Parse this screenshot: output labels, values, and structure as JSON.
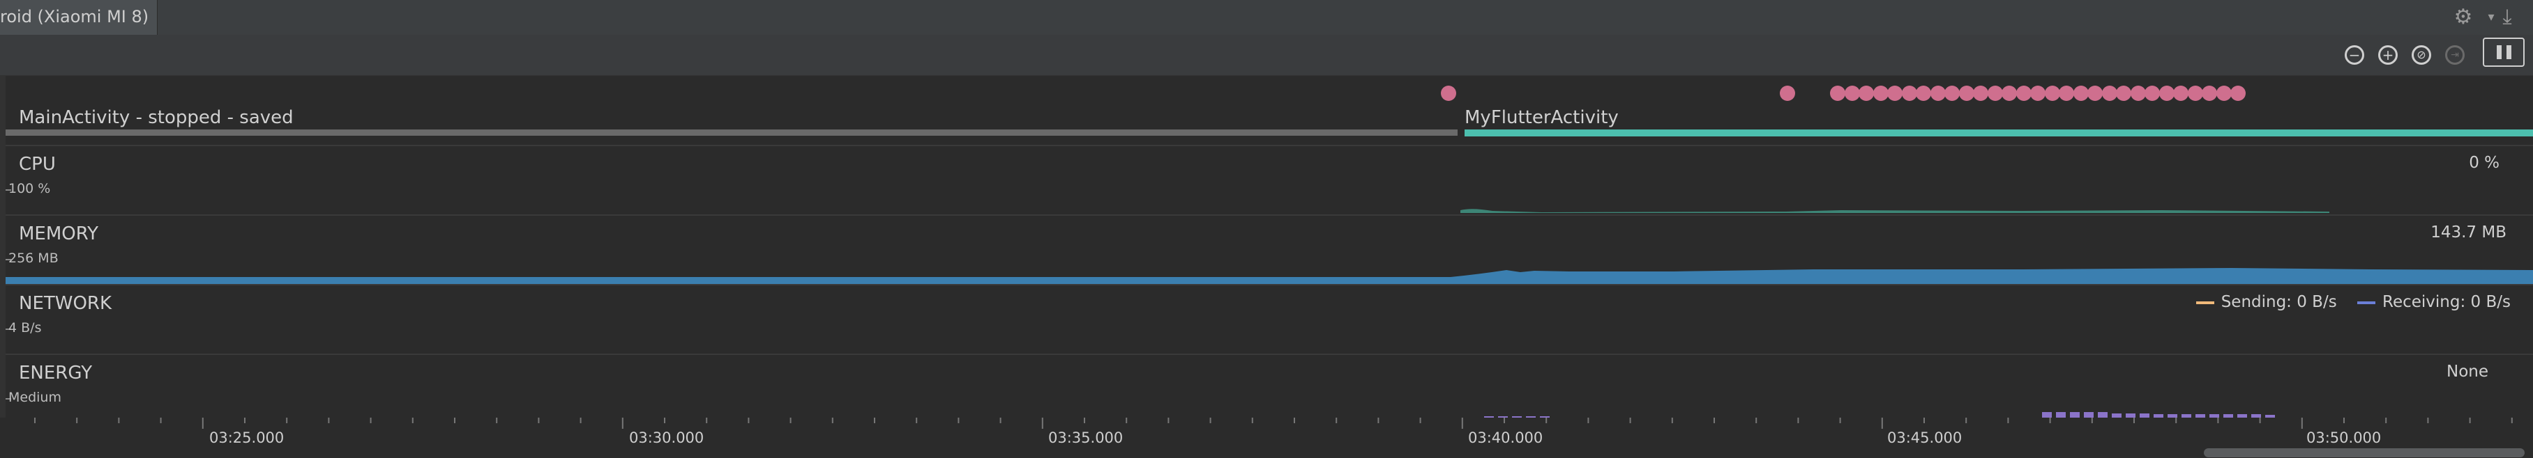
{
  "tab": {
    "title": "roid (Xiaomi MI 8)"
  },
  "toolbar": {
    "icons": [
      "zoom-out-icon",
      "zoom-in-icon",
      "reset-zoom-icon",
      "live-icon",
      "pause-icon"
    ]
  },
  "activities": {
    "main_label": "MainActivity - stopped - saved",
    "flutter_label": "MyFlutterActivity",
    "colors": {
      "main": "#6a6a6a",
      "flutter": "#4cbfae",
      "event": "#cf6f8e"
    }
  },
  "cpu": {
    "label": "CPU",
    "scale": "100 %",
    "value": "0 %",
    "color": "#3f8f7e"
  },
  "memory": {
    "label": "MEMORY",
    "scale": "256 MB",
    "value": "143.7 MB",
    "color": "#3b7fb0"
  },
  "network": {
    "label": "NETWORK",
    "scale": "4 B/s",
    "sending": "Sending: 0 B/s",
    "receiving": "Receiving: 0 B/s",
    "colors": {
      "sending": "#f0b97a",
      "receiving": "#6b7fd7"
    }
  },
  "energy": {
    "label": "ENERGY",
    "scale": "Medium",
    "value": "None",
    "color": "#8b74c9"
  },
  "axis": {
    "ticks": [
      "03:25.000",
      "03:30.000",
      "03:35.000",
      "03:40.000",
      "03:45.000",
      "03:50.000"
    ]
  }
}
